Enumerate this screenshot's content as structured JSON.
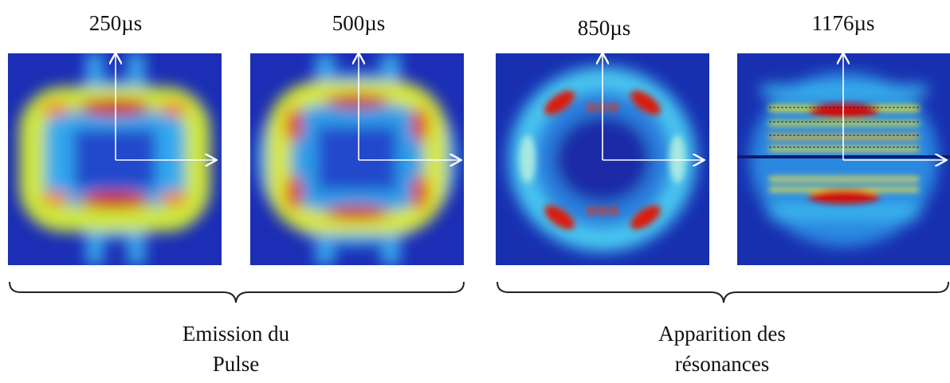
{
  "panels": [
    {
      "label": "250µs"
    },
    {
      "label": "500µs"
    },
    {
      "label": "850µs"
    },
    {
      "label": "1176µs"
    }
  ],
  "groups": [
    {
      "caption": [
        "Emission du",
        "Pulse"
      ]
    },
    {
      "caption": [
        "Apparition des",
        "résonances"
      ]
    }
  ]
}
